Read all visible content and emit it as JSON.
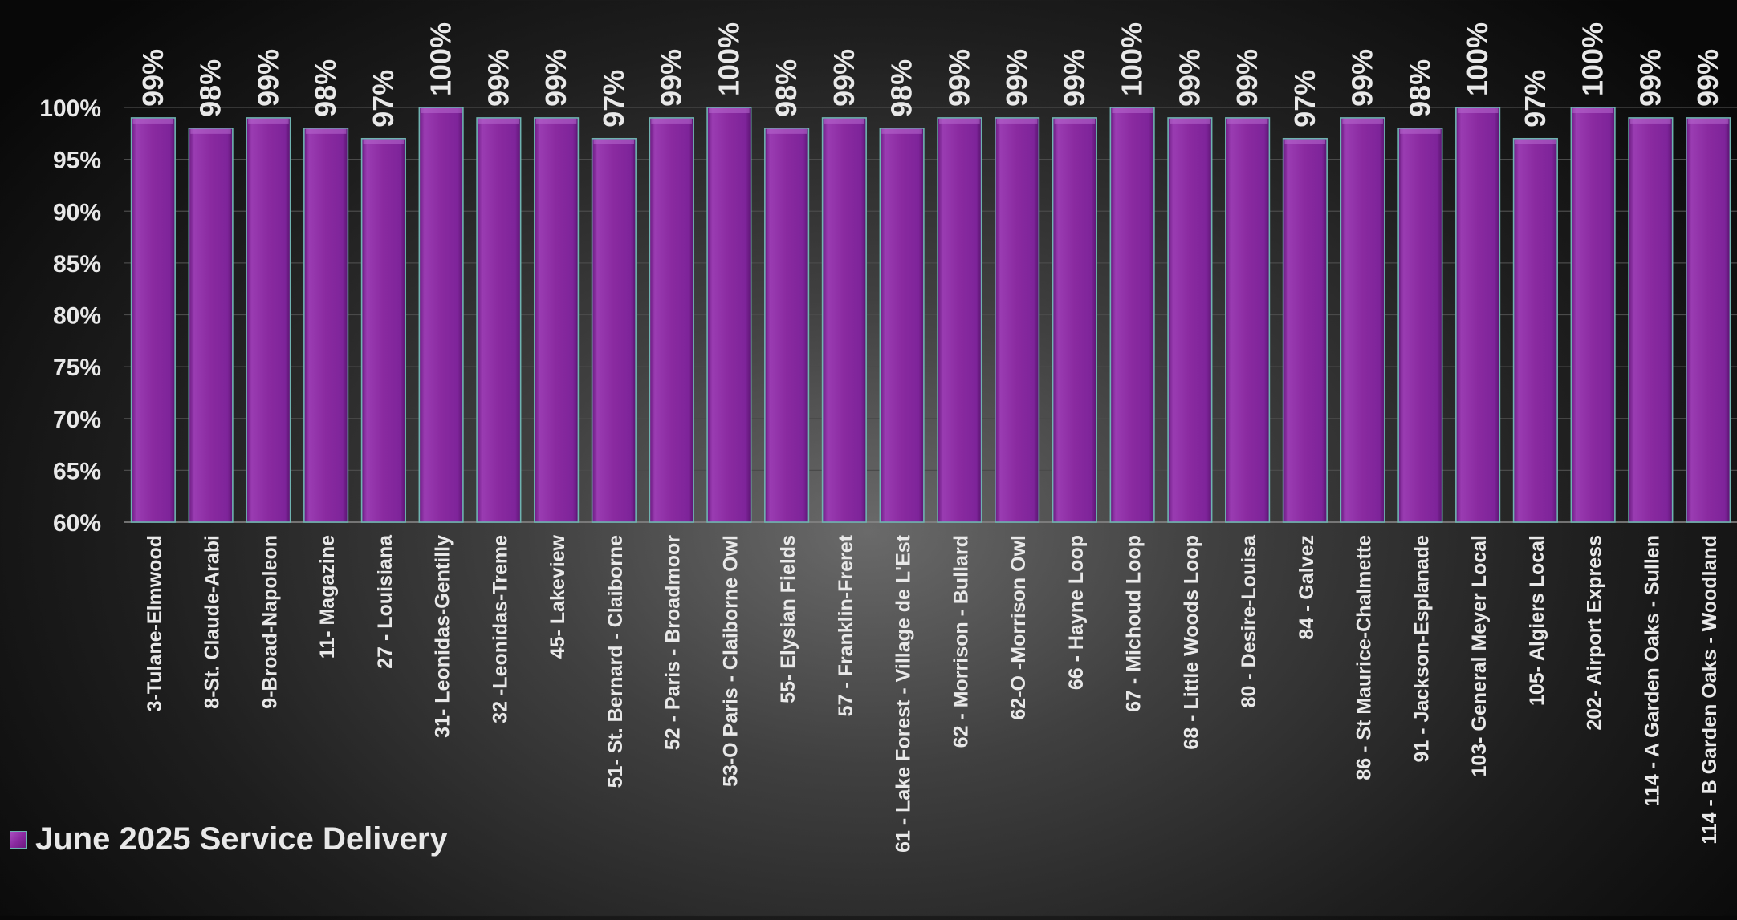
{
  "chart_data": {
    "type": "bar",
    "categories": [
      "3-Tulane-Elmwood",
      "8-St. Claude-Arabi",
      "9-Broad-Napoleon",
      "11- Magazine",
      "27 - Louisiana",
      "31- Leonidas-Gentilly",
      "32 -Leonidas-Treme",
      "45- Lakeview",
      "51- St. Bernard - Claiborne",
      "52 - Paris - Broadmoor",
      "53-O Paris - Claiborne Owl",
      "55- Elysian Fields",
      "57 - Franklin-Freret",
      "61 - Lake Forest - Village de L'Est",
      "62 - Morrison - Bullard",
      "62-O -Morrison Owl",
      "66 - Hayne Loop",
      "67 - Michoud Loop",
      "68 - Little Woods Loop",
      "80 - Desire-Louisa",
      "84 - Galvez",
      "86 - St Maurice-Chalmette",
      "91 - Jackson-Esplanade",
      "103- General Meyer Local",
      "105- Algiers Local",
      "202- Airport Express",
      "114 - A Garden Oaks - Sullen",
      "114 - B Garden Oaks - Woodland"
    ],
    "series": [
      {
        "name": "June 2025 Service Delivery",
        "values": [
          99,
          98,
          99,
          98,
          97,
          100,
          99,
          99,
          97,
          99,
          100,
          98,
          99,
          98,
          99,
          99,
          99,
          100,
          99,
          99,
          97,
          99,
          98,
          100,
          97,
          100,
          99,
          99
        ]
      }
    ],
    "data_labels": [
      "99%",
      "98%",
      "99%",
      "98%",
      "97%",
      "100%",
      "99%",
      "99%",
      "97%",
      "99%",
      "100%",
      "98%",
      "99%",
      "98%",
      "99%",
      "99%",
      "99%",
      "100%",
      "99%",
      "99%",
      "97%",
      "99%",
      "98%",
      "100%",
      "97%",
      "100%",
      "99%",
      "99%"
    ],
    "y_ticks": [
      "60%",
      "65%",
      "70%",
      "75%",
      "80%",
      "85%",
      "90%",
      "95%",
      "100%"
    ],
    "ylim": [
      60,
      100
    ],
    "title": "",
    "xlabel": "",
    "ylabel": "",
    "grid": true,
    "legend_position": "bottom-left",
    "colors": {
      "bar": "#8a2aa0",
      "bar_light": "#a84fc0",
      "bar_dark": "#6a1a80",
      "bar_edge": "#6fb3b0",
      "text": "#e8e8e8",
      "gridline": "#4a4a4a"
    }
  },
  "legend": {
    "label": "June 2025 Service Delivery",
    "swatch_icon": "square-swatch"
  }
}
